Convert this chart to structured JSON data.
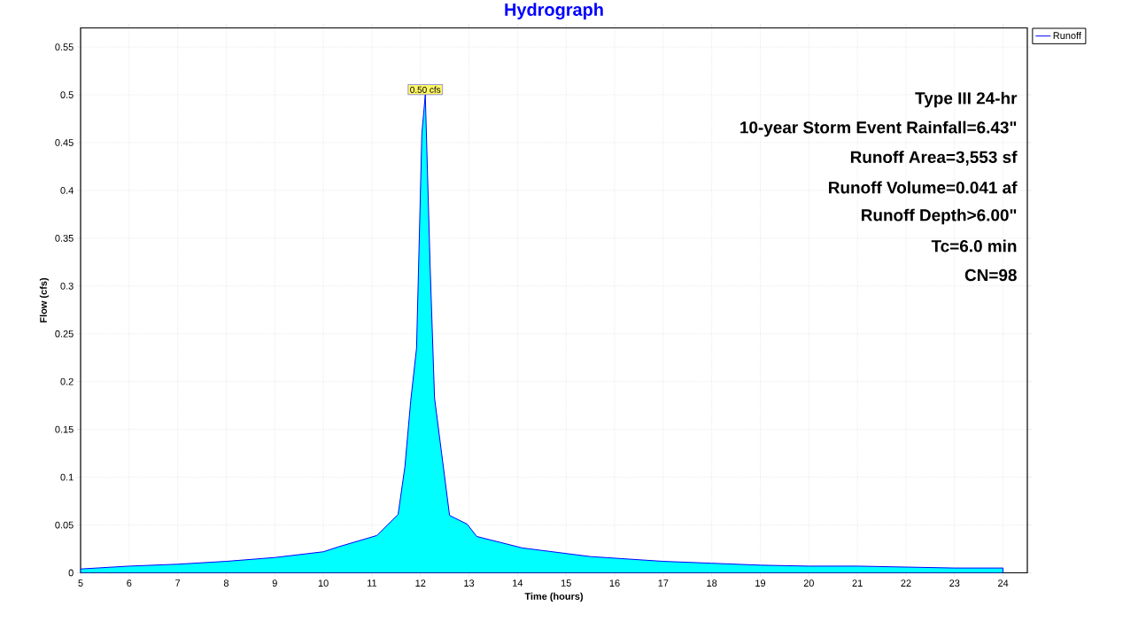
{
  "chart_data": {
    "type": "area",
    "title": "Hydrograph",
    "xlabel": "Time  (hours)",
    "ylabel": "Flow  (cfs)",
    "x": [
      5,
      6,
      7,
      8,
      9,
      10,
      10.3,
      11.1,
      11.54,
      11.68,
      11.8,
      11.92,
      12.03,
      12.1,
      12.2,
      12.29,
      12.6,
      12.96,
      13.16,
      14.1,
      15.5,
      17,
      18,
      19,
      20,
      21,
      22,
      23,
      24
    ],
    "series": [
      {
        "name": "Runoff",
        "color": "#00ffff",
        "values": [
          0.004,
          0.007,
          0.009,
          0.012,
          0.016,
          0.022,
          0.027,
          0.039,
          0.061,
          0.111,
          0.18,
          0.235,
          0.46,
          0.5,
          0.32,
          0.183,
          0.06,
          0.051,
          0.038,
          0.026,
          0.017,
          0.012,
          0.01,
          0.008,
          0.007,
          0.007,
          0.006,
          0.005,
          0.005
        ]
      }
    ],
    "xlim": [
      5,
      24.5
    ],
    "ylim": [
      0,
      0.57
    ],
    "xticks": [
      5,
      6,
      7,
      8,
      9,
      10,
      11,
      12,
      13,
      14,
      15,
      16,
      17,
      18,
      19,
      20,
      21,
      22,
      23,
      24
    ],
    "yticks": [
      0,
      0.05,
      0.1,
      0.15,
      0.2,
      0.25,
      0.3,
      0.35,
      0.4,
      0.45,
      0.5,
      0.55
    ],
    "grid": true,
    "legend": "top right",
    "annotations": [
      {
        "text": "0.50 cfs",
        "x": 12.1,
        "y": 0.5
      },
      "Type III 24-hr",
      "10-year Storm Event Rainfall=6.43\"",
      "Runoff Area=3,553 sf",
      "Runoff Volume=0.041 af",
      "Runoff Depth>6.00\"",
      "Tc=6.0 min",
      "CN=98"
    ]
  }
}
